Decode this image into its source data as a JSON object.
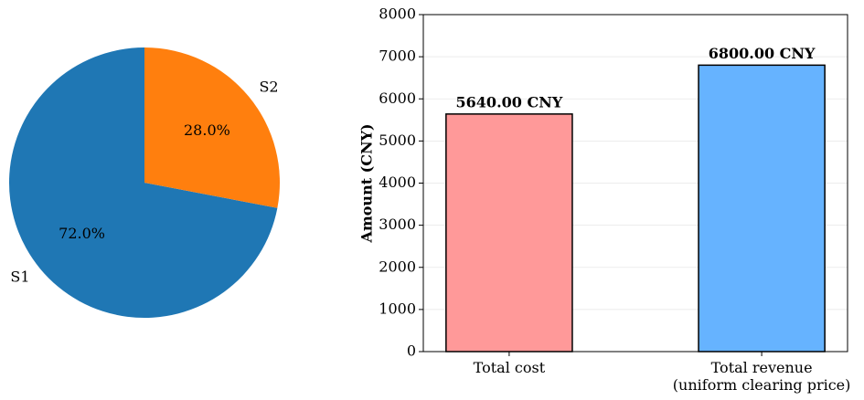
{
  "chart_data": [
    {
      "type": "pie",
      "categories": [
        "S1",
        "S2"
      ],
      "values": [
        72,
        28
      ],
      "value_labels": [
        "72.0%",
        "28.0%"
      ],
      "colors": [
        "#1f77b4",
        "#ff7f0e"
      ]
    },
    {
      "type": "bar",
      "categories": [
        "Total cost",
        "Total revenue\n(uniform clearing price)"
      ],
      "values": [
        5640,
        6800
      ],
      "value_labels": [
        "5640.00 CNY",
        "6800.00 CNY"
      ],
      "colors": [
        "#ff9999",
        "#66b3ff"
      ],
      "y_label": "Amount (CNY)",
      "ylim": [
        0,
        8000
      ],
      "yticks": [
        0,
        1000,
        2000,
        3000,
        4000,
        5000,
        6000,
        7000,
        8000
      ],
      "grid": true
    }
  ]
}
